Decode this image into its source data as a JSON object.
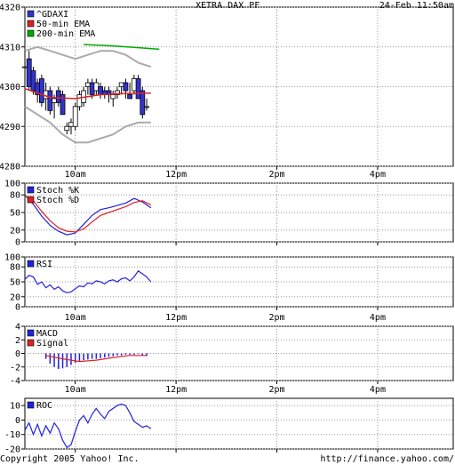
{
  "header": {
    "title": "XETRA DAX PF",
    "timestamp": "24-Feb 11:50am"
  },
  "footer": {
    "copyright": "Copyright 2005 Yahoo! Inc.",
    "url": "http://finance.yahoo.com/"
  },
  "x_ticks": [
    "10am",
    "12pm",
    "2pm",
    "4pm"
  ],
  "colors": {
    "price_up": "#ffffff",
    "price_down": "#3333cc",
    "ema50": "#dd2222",
    "ema200": "#00aa00",
    "bands": "#aaaaaa",
    "stoch_k": "#2222dd",
    "stoch_d": "#dd2222",
    "rsi": "#2222dd",
    "macd": "#2222dd",
    "signal": "#dd2222",
    "roc": "#2222dd",
    "grid": "#999999"
  },
  "chart_data": [
    {
      "type": "candlestick",
      "name": "price",
      "ylim": [
        4280,
        4320
      ],
      "y_ticks": [
        4280,
        4290,
        4300,
        4310,
        4320
      ],
      "legend": [
        "^GDAXI",
        "50-min EMA",
        "200-min EMA"
      ],
      "legend_placement": "top-left",
      "grid": true,
      "x_range": [
        "09:00",
        "17:30"
      ],
      "candles": [
        {
          "t": "09:00",
          "o": 4305,
          "h": 4309,
          "l": 4303,
          "c": 4305
        },
        {
          "t": "09:05",
          "o": 4307,
          "h": 4309,
          "l": 4299,
          "c": 4300
        },
        {
          "t": "09:10",
          "o": 4304,
          "h": 4305,
          "l": 4298,
          "c": 4299
        },
        {
          "t": "09:15",
          "o": 4301,
          "h": 4302,
          "l": 4296,
          "c": 4298
        },
        {
          "t": "09:20",
          "o": 4302,
          "h": 4303,
          "l": 4295,
          "c": 4296
        },
        {
          "t": "09:25",
          "o": 4297,
          "h": 4301,
          "l": 4294,
          "c": 4299
        },
        {
          "t": "09:30",
          "o": 4299,
          "h": 4300,
          "l": 4293,
          "c": 4294
        },
        {
          "t": "09:35",
          "o": 4296,
          "h": 4298,
          "l": 4292,
          "c": 4297
        },
        {
          "t": "09:40",
          "o": 4299,
          "h": 4300,
          "l": 4295,
          "c": 4296
        },
        {
          "t": "09:45",
          "o": 4298,
          "h": 4299,
          "l": 4293,
          "c": 4293
        },
        {
          "t": "09:50",
          "o": 4289,
          "h": 4291,
          "l": 4288,
          "c": 4290
        },
        {
          "t": "09:55",
          "o": 4290,
          "h": 4292,
          "l": 4288,
          "c": 4291
        },
        {
          "t": "10:00",
          "o": 4290,
          "h": 4296,
          "l": 4289,
          "c": 4295
        },
        {
          "t": "10:05",
          "o": 4295,
          "h": 4299,
          "l": 4294,
          "c": 4298
        },
        {
          "t": "10:10",
          "o": 4296,
          "h": 4300,
          "l": 4295,
          "c": 4299
        },
        {
          "t": "10:15",
          "o": 4300,
          "h": 4302,
          "l": 4298,
          "c": 4301
        },
        {
          "t": "10:20",
          "o": 4301,
          "h": 4302,
          "l": 4297,
          "c": 4298
        },
        {
          "t": "10:25",
          "o": 4299,
          "h": 4302,
          "l": 4298,
          "c": 4301
        },
        {
          "t": "10:30",
          "o": 4300,
          "h": 4301,
          "l": 4297,
          "c": 4298
        },
        {
          "t": "10:35",
          "o": 4299,
          "h": 4300,
          "l": 4297,
          "c": 4298
        },
        {
          "t": "10:40",
          "o": 4299,
          "h": 4300,
          "l": 4296,
          "c": 4298
        },
        {
          "t": "10:45",
          "o": 4297,
          "h": 4299,
          "l": 4295,
          "c": 4298
        },
        {
          "t": "10:50",
          "o": 4298,
          "h": 4300,
          "l": 4297,
          "c": 4299
        },
        {
          "t": "10:55",
          "o": 4300,
          "h": 4301,
          "l": 4298,
          "c": 4301
        },
        {
          "t": "11:00",
          "o": 4301,
          "h": 4302,
          "l": 4297,
          "c": 4299
        },
        {
          "t": "11:05",
          "o": 4298,
          "h": 4301,
          "l": 4297,
          "c": 4297
        },
        {
          "t": "11:10",
          "o": 4299,
          "h": 4303,
          "l": 4298,
          "c": 4302
        },
        {
          "t": "11:15",
          "o": 4302,
          "h": 4303,
          "l": 4297,
          "c": 4297
        },
        {
          "t": "11:20",
          "o": 4299,
          "h": 4300,
          "l": 4292,
          "c": 4293
        },
        {
          "t": "11:25",
          "o": 4295,
          "h": 4297,
          "l": 4294,
          "c": 4295
        }
      ],
      "ema50": {
        "t": [
          "09:00",
          "09:30",
          "10:00",
          "10:30",
          "11:00",
          "11:30"
        ],
        "v": [
          4299.5,
          4297.3,
          4297.0,
          4298.0,
          4298.3,
          4298.4
        ]
      },
      "ema200": {
        "t": [
          "10:10",
          "10:40",
          "11:10",
          "11:40"
        ],
        "v": [
          4310.6,
          4310.3,
          4309.9,
          4309.4
        ]
      },
      "band_upper": {
        "t": [
          "09:00",
          "09:15",
          "09:30",
          "09:45",
          "10:00",
          "10:15",
          "10:30",
          "10:45",
          "11:00",
          "11:15",
          "11:30"
        ],
        "v": [
          4309,
          4310,
          4309,
          4308,
          4307,
          4308,
          4309,
          4309,
          4308,
          4306,
          4305
        ]
      },
      "band_lower": {
        "t": [
          "09:00",
          "09:15",
          "09:30",
          "09:45",
          "10:00",
          "10:15",
          "10:30",
          "10:45",
          "11:00",
          "11:15",
          "11:30"
        ],
        "v": [
          4295,
          4293,
          4291,
          4288,
          4286,
          4286,
          4287,
          4288,
          4290,
          4291,
          4291
        ]
      }
    },
    {
      "type": "line",
      "name": "stochastic",
      "ylim": [
        0,
        100
      ],
      "y_ticks": [
        0,
        20,
        50,
        80,
        100
      ],
      "legend": [
        "Stoch %K",
        "Stoch %D"
      ],
      "legend_placement": "top-left",
      "grid": true,
      "series": [
        {
          "name": "Stoch %K",
          "t": [
            "09:00",
            "09:10",
            "09:20",
            "09:30",
            "09:40",
            "09:50",
            "10:00",
            "10:10",
            "10:20",
            "10:30",
            "10:40",
            "10:50",
            "11:00",
            "11:10",
            "11:20",
            "11:30"
          ],
          "v": [
            80,
            64,
            44,
            28,
            18,
            12,
            15,
            30,
            45,
            55,
            58,
            62,
            66,
            74,
            68,
            58
          ]
        },
        {
          "name": "Stoch %D",
          "t": [
            "09:00",
            "09:10",
            "09:20",
            "09:30",
            "09:40",
            "09:50",
            "10:00",
            "10:10",
            "10:20",
            "10:30",
            "10:40",
            "10:50",
            "11:00",
            "11:10",
            "11:20",
            "11:30"
          ],
          "v": [
            78,
            70,
            52,
            36,
            24,
            18,
            17,
            22,
            34,
            45,
            50,
            55,
            60,
            67,
            70,
            63
          ]
        }
      ]
    },
    {
      "type": "line",
      "name": "rsi",
      "ylim": [
        0,
        100
      ],
      "y_ticks": [
        0,
        20,
        50,
        80,
        100
      ],
      "legend": [
        "RSI"
      ],
      "legend_placement": "top-left",
      "grid": true,
      "series": [
        {
          "name": "RSI",
          "t": [
            "09:00",
            "09:05",
            "09:10",
            "09:15",
            "09:20",
            "09:25",
            "09:30",
            "09:35",
            "09:40",
            "09:45",
            "09:50",
            "09:55",
            "10:00",
            "10:05",
            "10:10",
            "10:15",
            "10:20",
            "10:25",
            "10:30",
            "10:35",
            "10:40",
            "10:45",
            "10:50",
            "10:55",
            "11:00",
            "11:05",
            "11:10",
            "11:15",
            "11:20",
            "11:25",
            "11:30"
          ],
          "v": [
            55,
            63,
            60,
            45,
            50,
            38,
            44,
            35,
            40,
            32,
            28,
            30,
            36,
            42,
            40,
            48,
            46,
            52,
            50,
            46,
            52,
            54,
            50,
            56,
            58,
            52,
            60,
            72,
            66,
            60,
            50
          ]
        }
      ]
    },
    {
      "type": "bar",
      "name": "macd",
      "ylim": [
        -4,
        4
      ],
      "y_ticks": [
        -4,
        -2,
        0,
        2,
        4
      ],
      "legend": [
        "MACD",
        "Signal"
      ],
      "legend_placement": "top-left",
      "grid": true,
      "macd_bars": {
        "t": [
          "09:25",
          "09:30",
          "09:35",
          "09:40",
          "09:45",
          "09:50",
          "09:55",
          "10:00",
          "10:05",
          "10:10",
          "10:15",
          "10:20",
          "10:25",
          "10:30",
          "10:35",
          "10:40",
          "10:45",
          "10:50",
          "10:55",
          "11:00",
          "11:05",
          "11:10",
          "11:15",
          "11:20",
          "11:25"
        ],
        "v": [
          -0.8,
          -1.5,
          -2.0,
          -2.3,
          -2.2,
          -2.0,
          -1.7,
          -1.4,
          -1.1,
          -1.0,
          -0.9,
          -0.8,
          -0.8,
          -0.7,
          -0.6,
          -0.5,
          -0.4,
          -0.3,
          -0.3,
          -0.2,
          -0.2,
          -0.2,
          -0.1,
          -0.3,
          -0.4
        ]
      },
      "signal": {
        "t": [
          "09:25",
          "09:45",
          "10:05",
          "10:25",
          "10:45",
          "11:05",
          "11:25"
        ],
        "v": [
          -0.3,
          -0.8,
          -1.2,
          -1.0,
          -0.6,
          -0.3,
          -0.3
        ]
      }
    },
    {
      "type": "line",
      "name": "roc",
      "ylim": [
        -20,
        15
      ],
      "y_ticks": [
        -20,
        -10,
        0,
        10
      ],
      "legend": [
        "ROC"
      ],
      "legend_placement": "top-left",
      "grid": true,
      "series": [
        {
          "name": "ROC",
          "t": [
            "09:00",
            "09:05",
            "09:10",
            "09:15",
            "09:20",
            "09:25",
            "09:30",
            "09:35",
            "09:40",
            "09:45",
            "09:50",
            "09:55",
            "10:00",
            "10:05",
            "10:10",
            "10:15",
            "10:20",
            "10:25",
            "10:30",
            "10:35",
            "10:40",
            "10:45",
            "10:50",
            "10:55",
            "11:00",
            "11:05",
            "11:10",
            "11:15",
            "11:20",
            "11:25",
            "11:30"
          ],
          "v": [
            -7,
            -2,
            -10,
            -3,
            -11,
            -4,
            -9,
            -2,
            -6,
            -14,
            -19,
            -17,
            -8,
            0,
            3,
            -2,
            4,
            8,
            4,
            1,
            6,
            8,
            10,
            11,
            10,
            5,
            -1,
            -3,
            -5,
            -4,
            -6
          ]
        }
      ]
    }
  ]
}
